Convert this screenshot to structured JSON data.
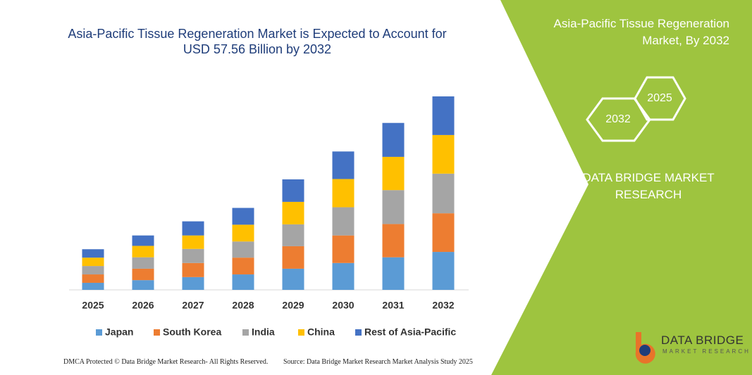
{
  "chart_data": {
    "type": "stacked-bar",
    "title": "Asia-Pacific Tissue Regeneration Market is Expected to Account for USD 57.56 Billion by 2032",
    "categories": [
      "2025",
      "2026",
      "2027",
      "2028",
      "2029",
      "2030",
      "2031",
      "2032"
    ],
    "series": [
      {
        "name": "Japan",
        "color": "#5b9bd5",
        "values": [
          2.1,
          2.9,
          3.8,
          4.6,
          6.3,
          8.0,
          9.7,
          11.3
        ]
      },
      {
        "name": "South Korea",
        "color": "#ed7d31",
        "values": [
          2.5,
          3.4,
          4.2,
          5.0,
          6.7,
          8.2,
          9.9,
          11.5
        ]
      },
      {
        "name": "India",
        "color": "#a5a5a5",
        "values": [
          2.5,
          3.4,
          4.2,
          4.8,
          6.5,
          8.4,
          10.1,
          11.8
        ]
      },
      {
        "name": "China",
        "color": "#ffc000",
        "values": [
          2.5,
          3.4,
          4.0,
          5.0,
          6.7,
          8.4,
          9.9,
          11.5
        ]
      },
      {
        "name": "Rest of Asia-Pacific",
        "color": "#4472c4",
        "values": [
          2.5,
          3.1,
          4.2,
          5.0,
          6.7,
          8.2,
          10.1,
          11.5
        ]
      }
    ]
  },
  "panel": {
    "title": "Asia-Pacific Tissue Regeneration Market, By 2032",
    "hex_left": "2032",
    "hex_right": "2025",
    "brand": "DATA BRIDGE MARKET RESEARCH"
  },
  "footer": {
    "left": "DMCA Protected © Data Bridge Market Research- All Rights Reserved.",
    "right": "Source: Data Bridge Market Research Market Analysis Study 2025"
  },
  "logo": {
    "name": "DATA BRIDGE",
    "tagline": "MARKET RESEARCH"
  }
}
